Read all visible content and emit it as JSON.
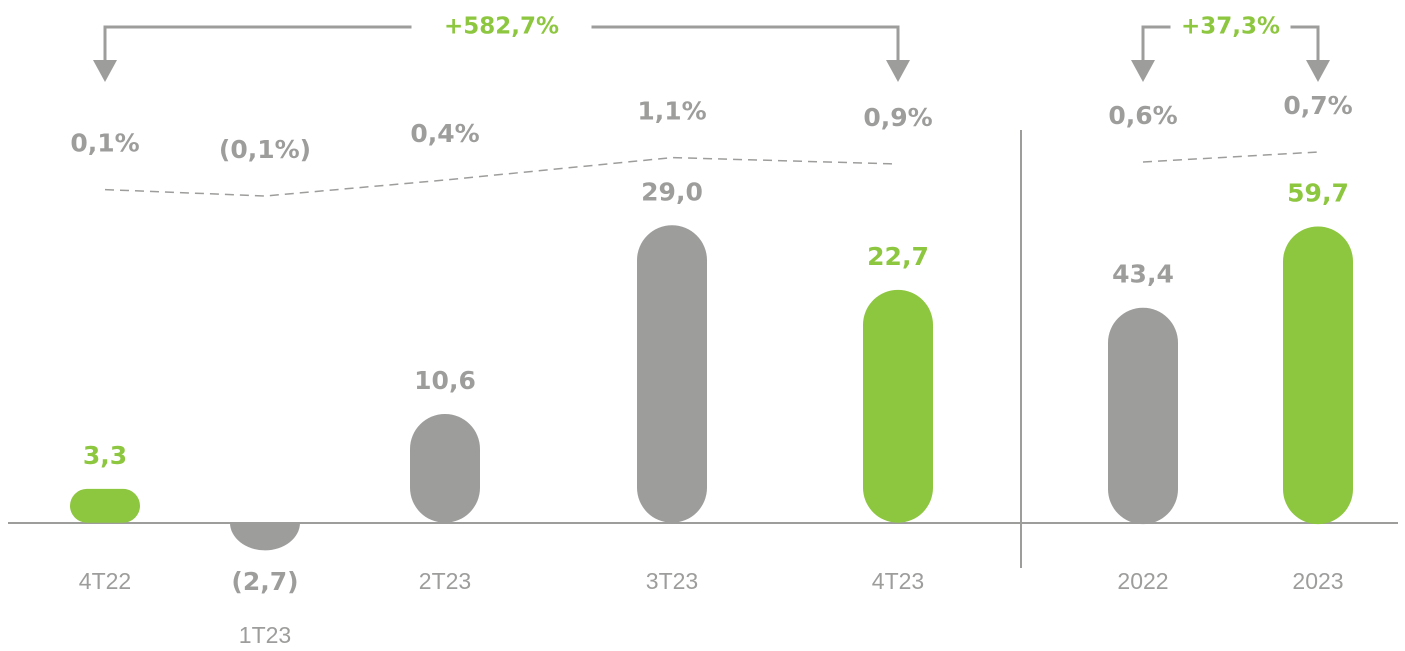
{
  "chart_data": [
    {
      "type": "bar",
      "categories": [
        "4T22",
        "1T23",
        "2T23",
        "3T23",
        "4T23"
      ],
      "values": [
        3.3,
        -2.7,
        10.6,
        29.0,
        22.7
      ],
      "value_labels": [
        "3,3",
        "(2,7)",
        "10,6",
        "29,0",
        "22,7"
      ],
      "colors": [
        "#8dc63f",
        "#9d9d9c",
        "#9d9d9c",
        "#9d9d9c",
        "#8dc63f"
      ],
      "ylim": [
        -5,
        30
      ],
      "series": [
        {
          "name": null,
          "axis": "y2",
          "color": "#9d9d9c",
          "values": [
            0.1,
            -0.1,
            0.4,
            1.1,
            0.9
          ],
          "value_labels": [
            "0,1%",
            "(0,1%)",
            "0,4%",
            "1,1%",
            "0,9%"
          ]
        }
      ],
      "y2lim": [
        -2.1,
        2.9
      ],
      "annotation": "+582,7%"
    },
    {
      "type": "bar",
      "categories": [
        "2022",
        "2023"
      ],
      "values": [
        43.4,
        59.7
      ],
      "value_labels": [
        "43,4",
        "59,7"
      ],
      "colors": [
        "#9d9d9c",
        "#8dc63f"
      ],
      "ylim": [
        -10,
        62
      ],
      "series": [
        {
          "name": null,
          "axis": "y2",
          "color": "#9d9d9c",
          "values": [
            0.6,
            0.7
          ],
          "value_labels": [
            "0,6%",
            "0,7%"
          ]
        }
      ],
      "y2lim": [
        -0.38,
        1.22
      ],
      "annotation": "+37,3%"
    }
  ]
}
